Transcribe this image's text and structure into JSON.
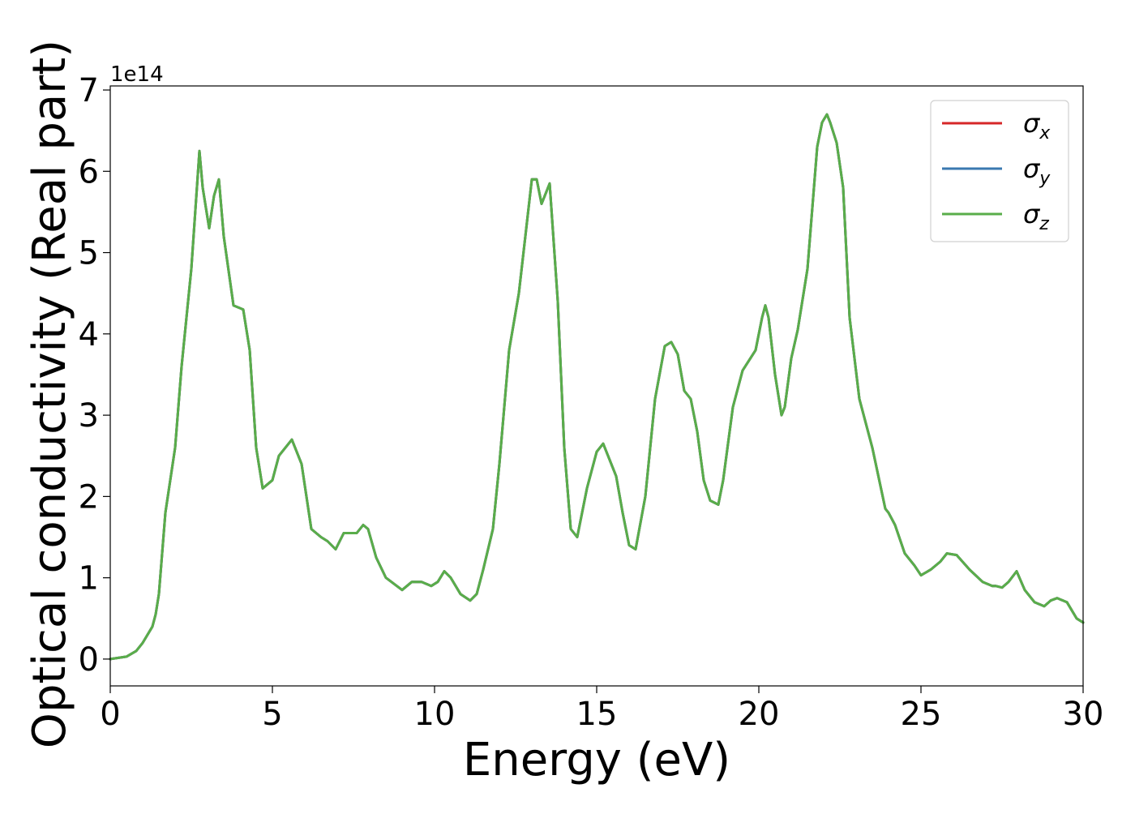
{
  "chart_data": {
    "type": "line",
    "title": "",
    "xlabel": "Energy (eV)",
    "ylabel": "Optical conductivity (Real part)",
    "y_offset_label": "1e14",
    "y_scale": 100000000000000.0,
    "xlim": [
      0,
      30
    ],
    "ylim": [
      -0.33,
      7.05
    ],
    "xticks": [
      0,
      5,
      10,
      15,
      20,
      25,
      30
    ],
    "yticks": [
      0,
      1,
      2,
      3,
      4,
      5,
      6,
      7
    ],
    "grid": false,
    "legend_position": "top-right",
    "legend": [
      {
        "label": "σ",
        "sub": "x",
        "color": "#d62728"
      },
      {
        "label": "σ",
        "sub": "y",
        "color": "#3a78b0"
      },
      {
        "label": "σ",
        "sub": "z",
        "color": "#59ad4a"
      }
    ],
    "series": [
      {
        "name": "σx",
        "color": "#d62728",
        "x": [
          0,
          0.5,
          0.8,
          1.0,
          1.3,
          1.4,
          1.5,
          1.7,
          2.0,
          2.2,
          2.5,
          2.75,
          2.85,
          3.05,
          3.2,
          3.35,
          3.5,
          3.8,
          4.1,
          4.3,
          4.5,
          4.7,
          5.0,
          5.2,
          5.6,
          5.9,
          6.2,
          6.5,
          6.7,
          6.95,
          7.2,
          7.6,
          7.8,
          7.95,
          8.2,
          8.5,
          9.0,
          9.3,
          9.6,
          9.9,
          10.1,
          10.3,
          10.5,
          10.8,
          11.1,
          11.3,
          11.5,
          11.8,
          12.0,
          12.3,
          12.6,
          13.0,
          13.15,
          13.3,
          13.4,
          13.55,
          13.8,
          14.0,
          14.2,
          14.4,
          14.7,
          15.0,
          15.2,
          15.35,
          15.6,
          15.8,
          16.0,
          16.2,
          16.5,
          16.8,
          17.1,
          17.3,
          17.5,
          17.7,
          17.9,
          18.1,
          18.3,
          18.5,
          18.75,
          18.9,
          19.2,
          19.5,
          19.9,
          20.1,
          20.2,
          20.3,
          20.5,
          20.7,
          20.8,
          21.0,
          21.2,
          21.5,
          21.8,
          21.95,
          22.1,
          22.2,
          22.4,
          22.6,
          22.8,
          23.1,
          23.5,
          23.9,
          24.0,
          24.2,
          24.5,
          24.8,
          25.0,
          25.3,
          25.6,
          25.8,
          26.1,
          26.5,
          26.9,
          27.2,
          27.3,
          27.5,
          27.7,
          27.95,
          28.2,
          28.5,
          28.8,
          29.0,
          29.2,
          29.5,
          29.8,
          30.0
        ],
        "values": [
          0.0,
          0.03,
          0.1,
          0.2,
          0.4,
          0.55,
          0.8,
          1.8,
          2.6,
          3.6,
          4.8,
          6.25,
          5.8,
          5.3,
          5.7,
          5.9,
          5.2,
          4.35,
          4.3,
          3.8,
          2.6,
          2.1,
          2.2,
          2.5,
          2.7,
          2.4,
          1.6,
          1.5,
          1.45,
          1.35,
          1.55,
          1.55,
          1.65,
          1.6,
          1.25,
          1.0,
          0.85,
          0.95,
          0.95,
          0.9,
          0.95,
          1.08,
          1.0,
          0.8,
          0.72,
          0.8,
          1.1,
          1.6,
          2.4,
          3.8,
          4.5,
          5.9,
          5.9,
          5.6,
          5.7,
          5.85,
          4.4,
          2.6,
          1.6,
          1.5,
          2.1,
          2.55,
          2.65,
          2.5,
          2.25,
          1.8,
          1.4,
          1.35,
          2.0,
          3.2,
          3.85,
          3.9,
          3.75,
          3.3,
          3.2,
          2.8,
          2.2,
          1.95,
          1.9,
          2.2,
          3.1,
          3.55,
          3.8,
          4.2,
          4.35,
          4.2,
          3.5,
          3.0,
          3.1,
          3.7,
          4.05,
          4.8,
          6.3,
          6.6,
          6.7,
          6.6,
          6.35,
          5.8,
          4.2,
          3.2,
          2.6,
          1.85,
          1.8,
          1.65,
          1.3,
          1.15,
          1.03,
          1.1,
          1.2,
          1.3,
          1.28,
          1.1,
          0.95,
          0.9,
          0.9,
          0.88,
          0.95,
          1.08,
          0.85,
          0.7,
          0.65,
          0.72,
          0.75,
          0.7,
          0.5,
          0.45
        ]
      },
      {
        "name": "σy",
        "color": "#3a78b0",
        "x": [
          0,
          0.5,
          0.8,
          1.0,
          1.3,
          1.4,
          1.5,
          1.7,
          2.0,
          2.2,
          2.5,
          2.75,
          2.85,
          3.05,
          3.2,
          3.35,
          3.5,
          3.8,
          4.1,
          4.3,
          4.5,
          4.7,
          5.0,
          5.2,
          5.6,
          5.9,
          6.2,
          6.5,
          6.7,
          6.95,
          7.2,
          7.6,
          7.8,
          7.95,
          8.2,
          8.5,
          9.0,
          9.3,
          9.6,
          9.9,
          10.1,
          10.3,
          10.5,
          10.8,
          11.1,
          11.3,
          11.5,
          11.8,
          12.0,
          12.3,
          12.6,
          13.0,
          13.15,
          13.3,
          13.4,
          13.55,
          13.8,
          14.0,
          14.2,
          14.4,
          14.7,
          15.0,
          15.2,
          15.35,
          15.6,
          15.8,
          16.0,
          16.2,
          16.5,
          16.8,
          17.1,
          17.3,
          17.5,
          17.7,
          17.9,
          18.1,
          18.3,
          18.5,
          18.75,
          18.9,
          19.2,
          19.5,
          19.9,
          20.1,
          20.2,
          20.3,
          20.5,
          20.7,
          20.8,
          21.0,
          21.2,
          21.5,
          21.8,
          21.95,
          22.1,
          22.2,
          22.4,
          22.6,
          22.8,
          23.1,
          23.5,
          23.9,
          24.0,
          24.2,
          24.5,
          24.8,
          25.0,
          25.3,
          25.6,
          25.8,
          26.1,
          26.5,
          26.9,
          27.2,
          27.3,
          27.5,
          27.7,
          27.95,
          28.2,
          28.5,
          28.8,
          29.0,
          29.2,
          29.5,
          29.8,
          30.0
        ],
        "values": [
          0.0,
          0.03,
          0.1,
          0.2,
          0.4,
          0.55,
          0.8,
          1.8,
          2.6,
          3.6,
          4.8,
          6.25,
          5.8,
          5.3,
          5.7,
          5.9,
          5.2,
          4.35,
          4.3,
          3.8,
          2.6,
          2.1,
          2.2,
          2.5,
          2.7,
          2.4,
          1.6,
          1.5,
          1.45,
          1.35,
          1.55,
          1.55,
          1.65,
          1.6,
          1.25,
          1.0,
          0.85,
          0.95,
          0.95,
          0.9,
          0.95,
          1.08,
          1.0,
          0.8,
          0.72,
          0.8,
          1.1,
          1.6,
          2.4,
          3.8,
          4.5,
          5.9,
          5.9,
          5.6,
          5.7,
          5.85,
          4.4,
          2.6,
          1.6,
          1.5,
          2.1,
          2.55,
          2.65,
          2.5,
          2.25,
          1.8,
          1.4,
          1.35,
          2.0,
          3.2,
          3.85,
          3.9,
          3.75,
          3.3,
          3.2,
          2.8,
          2.2,
          1.95,
          1.9,
          2.2,
          3.1,
          3.55,
          3.8,
          4.2,
          4.35,
          4.2,
          3.5,
          3.0,
          3.1,
          3.7,
          4.05,
          4.8,
          6.3,
          6.6,
          6.7,
          6.6,
          6.35,
          5.8,
          4.2,
          3.2,
          2.6,
          1.85,
          1.8,
          1.65,
          1.3,
          1.15,
          1.03,
          1.1,
          1.2,
          1.3,
          1.28,
          1.1,
          0.95,
          0.9,
          0.9,
          0.88,
          0.95,
          1.08,
          0.85,
          0.7,
          0.65,
          0.72,
          0.75,
          0.7,
          0.5,
          0.45
        ]
      },
      {
        "name": "σz",
        "color": "#59ad4a",
        "x": [
          0,
          0.5,
          0.8,
          1.0,
          1.3,
          1.4,
          1.5,
          1.7,
          2.0,
          2.2,
          2.5,
          2.75,
          2.85,
          3.05,
          3.2,
          3.35,
          3.5,
          3.8,
          4.1,
          4.3,
          4.5,
          4.7,
          5.0,
          5.2,
          5.6,
          5.9,
          6.2,
          6.5,
          6.7,
          6.95,
          7.2,
          7.6,
          7.8,
          7.95,
          8.2,
          8.5,
          9.0,
          9.3,
          9.6,
          9.9,
          10.1,
          10.3,
          10.5,
          10.8,
          11.1,
          11.3,
          11.5,
          11.8,
          12.0,
          12.3,
          12.6,
          13.0,
          13.15,
          13.3,
          13.4,
          13.55,
          13.8,
          14.0,
          14.2,
          14.4,
          14.7,
          15.0,
          15.2,
          15.35,
          15.6,
          15.8,
          16.0,
          16.2,
          16.5,
          16.8,
          17.1,
          17.3,
          17.5,
          17.7,
          17.9,
          18.1,
          18.3,
          18.5,
          18.75,
          18.9,
          19.2,
          19.5,
          19.9,
          20.1,
          20.2,
          20.3,
          20.5,
          20.7,
          20.8,
          21.0,
          21.2,
          21.5,
          21.8,
          21.95,
          22.1,
          22.2,
          22.4,
          22.6,
          22.8,
          23.1,
          23.5,
          23.9,
          24.0,
          24.2,
          24.5,
          24.8,
          25.0,
          25.3,
          25.6,
          25.8,
          26.1,
          26.5,
          26.9,
          27.2,
          27.3,
          27.5,
          27.7,
          27.95,
          28.2,
          28.5,
          28.8,
          29.0,
          29.2,
          29.5,
          29.8,
          30.0
        ],
        "values": [
          0.0,
          0.03,
          0.1,
          0.2,
          0.4,
          0.55,
          0.8,
          1.8,
          2.6,
          3.6,
          4.8,
          6.25,
          5.8,
          5.3,
          5.7,
          5.9,
          5.2,
          4.35,
          4.3,
          3.8,
          2.6,
          2.1,
          2.2,
          2.5,
          2.7,
          2.4,
          1.6,
          1.5,
          1.45,
          1.35,
          1.55,
          1.55,
          1.65,
          1.6,
          1.25,
          1.0,
          0.85,
          0.95,
          0.95,
          0.9,
          0.95,
          1.08,
          1.0,
          0.8,
          0.72,
          0.8,
          1.1,
          1.6,
          2.4,
          3.8,
          4.5,
          5.9,
          5.9,
          5.6,
          5.7,
          5.85,
          4.4,
          2.6,
          1.6,
          1.5,
          2.1,
          2.55,
          2.65,
          2.5,
          2.25,
          1.8,
          1.4,
          1.35,
          2.0,
          3.2,
          3.85,
          3.9,
          3.75,
          3.3,
          3.2,
          2.8,
          2.2,
          1.95,
          1.9,
          2.2,
          3.1,
          3.55,
          3.8,
          4.2,
          4.35,
          4.2,
          3.5,
          3.0,
          3.1,
          3.7,
          4.05,
          4.8,
          6.3,
          6.6,
          6.7,
          6.6,
          6.35,
          5.8,
          4.2,
          3.2,
          2.6,
          1.85,
          1.8,
          1.65,
          1.3,
          1.15,
          1.03,
          1.1,
          1.2,
          1.3,
          1.28,
          1.1,
          0.95,
          0.9,
          0.9,
          0.88,
          0.95,
          1.08,
          0.85,
          0.7,
          0.65,
          0.72,
          0.75,
          0.7,
          0.5,
          0.45
        ]
      }
    ]
  }
}
